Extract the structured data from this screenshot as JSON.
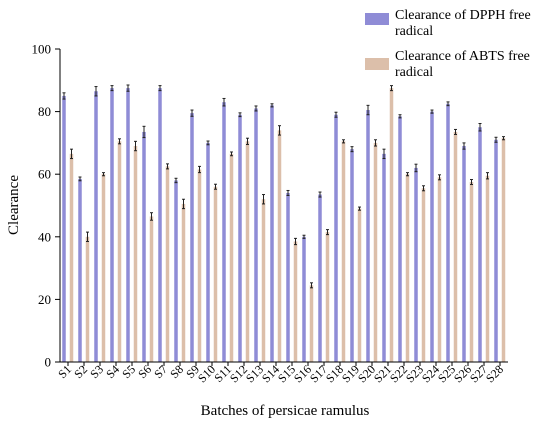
{
  "chart_data": {
    "type": "bar",
    "xlabel": "Batches of persicae ramulus",
    "ylabel": "Clearance",
    "ylim": [
      0,
      100
    ],
    "yticks": [
      0,
      20,
      40,
      60,
      80,
      100
    ],
    "grid": false,
    "legend_position": "top-right",
    "categories": [
      "S1",
      "S2",
      "S3",
      "S4",
      "S5",
      "S6",
      "S7",
      "S8",
      "S9",
      "S10",
      "S11",
      "S12",
      "S13",
      "S14",
      "S15",
      "S16",
      "S17",
      "S18",
      "S19",
      "S20",
      "S21",
      "S22",
      "S23",
      "S24",
      "S25",
      "S26",
      "S27",
      "S28"
    ],
    "series": [
      {
        "name": "Clearance of DPPH free radical",
        "color": "#8f8cd6",
        "values": [
          85,
          58.5,
          86.5,
          87.5,
          87.5,
          73.5,
          87.5,
          58,
          79.5,
          70,
          83,
          79,
          81,
          82,
          54,
          40,
          53.5,
          79,
          68,
          80.5,
          66.5,
          78.5,
          62,
          80,
          82.5,
          69,
          75,
          71
        ],
        "errors": [
          1,
          0.6,
          1.5,
          0.8,
          1,
          1.8,
          0.8,
          0.7,
          1,
          0.6,
          1.2,
          0.6,
          0.8,
          0.5,
          0.8,
          0.5,
          0.8,
          0.8,
          0.8,
          1.5,
          1.5,
          0.5,
          1.2,
          0.5,
          0.6,
          1,
          1.2,
          0.8
        ]
      },
      {
        "name": "Clearance of ABTS free radical",
        "color": "#dcbfaa",
        "values": [
          66.5,
          40,
          60,
          70.5,
          69,
          46.5,
          62.5,
          50.5,
          61.5,
          56,
          66.5,
          70.5,
          52,
          74,
          38.5,
          24.5,
          41.5,
          70.5,
          49,
          70,
          87.5,
          60,
          55.5,
          59,
          73.5,
          57.5,
          59.5,
          71.5
        ],
        "errors": [
          1.5,
          1.5,
          0.5,
          0.8,
          1.5,
          1.2,
          0.8,
          1.5,
          1,
          0.8,
          0.6,
          1,
          1.5,
          1.5,
          1,
          0.8,
          0.8,
          0.5,
          0.5,
          1,
          0.8,
          0.5,
          0.8,
          0.8,
          0.8,
          0.8,
          1,
          0.5
        ]
      }
    ]
  }
}
